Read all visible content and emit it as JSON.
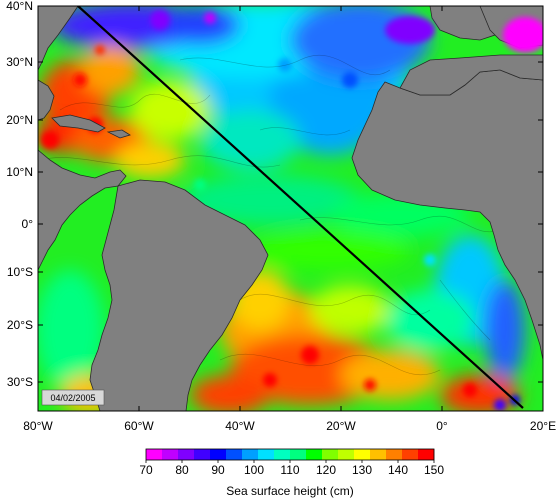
{
  "map": {
    "date_label": "04/02/2005",
    "lon_ticks": [
      "80°W",
      "60°W",
      "40°W",
      "20°W",
      "0°",
      "20°E"
    ],
    "lat_ticks": [
      "40°N",
      "30°N",
      "20°N",
      "10°N",
      "0°",
      "10°S",
      "20°S",
      "30°S"
    ],
    "land_color": "#808080",
    "track_color": "#000000"
  },
  "colorbar": {
    "labels": [
      "70",
      "80",
      "90",
      "100",
      "110",
      "120",
      "130",
      "140",
      "150"
    ],
    "title": "Sea surface height (cm)",
    "colors": [
      "#ff00ff",
      "#c000ff",
      "#8000ff",
      "#4000ff",
      "#0000ff",
      "#0050ff",
      "#00a0ff",
      "#00e0ff",
      "#00ffc0",
      "#00ff80",
      "#00ff00",
      "#80ff00",
      "#c0ff00",
      "#ffff00",
      "#ffc000",
      "#ff8000",
      "#ff4000",
      "#ff0000"
    ]
  }
}
